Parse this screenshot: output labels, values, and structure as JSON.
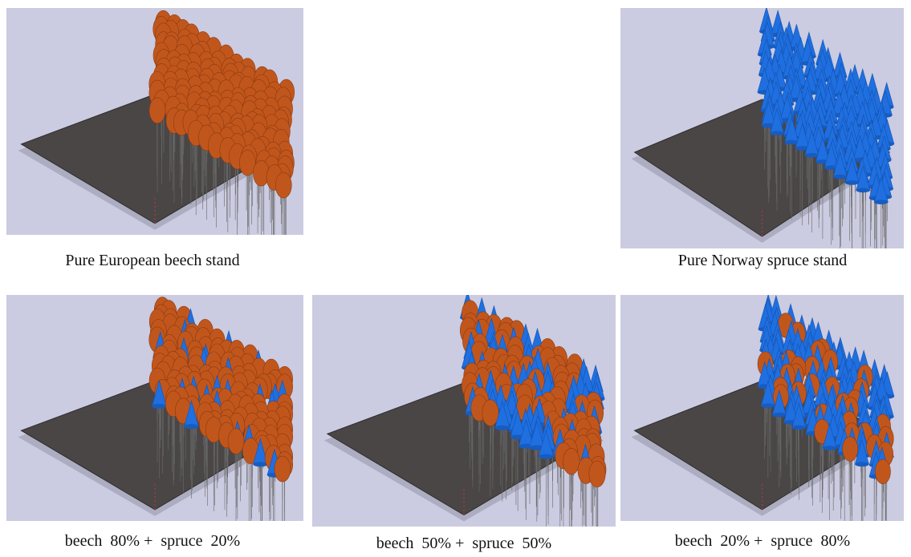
{
  "panels": [
    {
      "caption": "Pure European beech stand"
    },
    {
      "caption": "Pure Norway spruce stand"
    },
    {
      "caption": "beech  80% +  spruce  20%"
    },
    {
      "caption": "beech  50% +  spruce  50%"
    },
    {
      "caption": "beech  20% +  spruce  80%"
    }
  ]
}
